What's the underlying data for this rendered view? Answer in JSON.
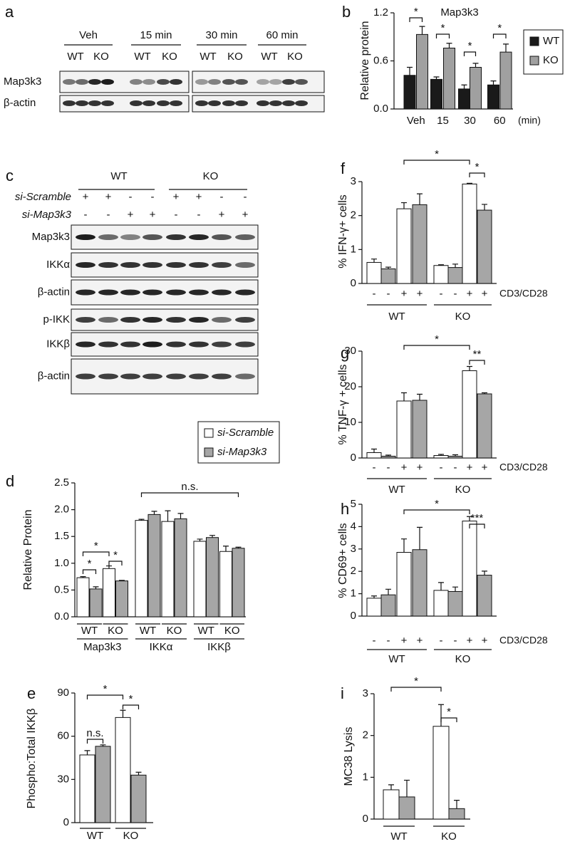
{
  "blots": [
    {
      "panel_label": "a",
      "groups": [
        "Veh",
        "15 min",
        "30 min",
        "60 min"
      ],
      "lanes": [
        "WT",
        "KO",
        "WT",
        "KO",
        "WT",
        "KO",
        "WT",
        "KO"
      ],
      "rows": [
        "Map3k3",
        "β-actin"
      ]
    },
    {
      "panel_label": "c",
      "groups": [
        "WT",
        "KO"
      ],
      "treatments": [
        {
          "name": "si-Scramble",
          "signs": [
            "+",
            "+",
            "-",
            "-",
            "+",
            "+",
            "-",
            "-"
          ]
        },
        {
          "name": "si-Map3k3",
          "signs": [
            "-",
            "-",
            "+",
            "+",
            "-",
            "-",
            "+",
            "+"
          ]
        }
      ],
      "rows": [
        "Map3k3",
        "IKKα",
        "β-actin",
        "p-IKK",
        "IKKβ",
        "β-actin"
      ]
    }
  ],
  "chart_data": [
    {
      "type": "bar",
      "panel_label": "b",
      "title": "Map3k3",
      "ylabel": "Relative protein",
      "xlabel": "(min)",
      "categories": [
        "Veh",
        "15",
        "30",
        "60"
      ],
      "series": [
        {
          "name": "WT",
          "color": "#1a1a1a",
          "values": [
            0.42,
            0.37,
            0.25,
            0.3
          ],
          "errors": [
            0.1,
            0.03,
            0.05,
            0.05
          ]
        },
        {
          "name": "KO",
          "color": "#a0a0a0",
          "values": [
            0.93,
            0.76,
            0.52,
            0.71
          ],
          "errors": [
            0.1,
            0.06,
            0.05,
            0.1
          ]
        }
      ],
      "ylim": [
        0,
        1.2
      ],
      "yticks": [
        {
          "value": 0,
          "label": "0.0"
        },
        0.6,
        1.2
      ],
      "legend": "right",
      "annotations": [
        "*",
        "*",
        "*",
        "*"
      ]
    },
    {
      "type": "bar",
      "panel_label": "d",
      "ylabel": "Relative Protein",
      "categories": [
        "WT",
        "KO",
        "WT",
        "KO",
        "WT",
        "KO"
      ],
      "groups": [
        "Map3k3",
        "IKKα",
        "IKKβ"
      ],
      "series": [
        {
          "name": "si-Scramble",
          "color": "#ffffff",
          "values": [
            0.73,
            0.9,
            1.8,
            1.78,
            1.41,
            1.22
          ],
          "errors": [
            0.02,
            0.05,
            0.02,
            0.2,
            0.04,
            0.1
          ]
        },
        {
          "name": "si-Map3k3",
          "color": "#a6a6a6",
          "values": [
            0.52,
            0.67,
            1.91,
            1.83,
            1.48,
            1.28
          ],
          "errors": [
            0.04,
            0.01,
            0.06,
            0.1,
            0.04,
            0.02
          ]
        }
      ],
      "ylim": [
        0,
        2.5
      ],
      "yticks": [
        {
          "value": 0,
          "label": "0.0"
        },
        0.5,
        {
          "value": 1,
          "label": "1.0"
        },
        1.5,
        {
          "value": 2,
          "label": "2.0"
        },
        2.5
      ],
      "legend": "upper center",
      "annotations": [
        "*",
        "*",
        "*",
        "n.s."
      ]
    },
    {
      "type": "bar",
      "panel_label": "e",
      "ylabel": "Phospho:Total IKKβ",
      "categories": [
        "WT",
        "KO"
      ],
      "series": [
        {
          "color": "#ffffff",
          "values": [
            47,
            73
          ],
          "errors": [
            3,
            5
          ]
        },
        {
          "color": "#a6a6a6",
          "values": [
            53,
            33
          ],
          "errors": [
            1,
            2
          ]
        }
      ],
      "ylim": [
        0,
        90
      ],
      "yticks": [
        0,
        30,
        60,
        90
      ],
      "annotations": [
        "*",
        "n.s.",
        "*"
      ]
    },
    {
      "type": "bar",
      "panel_label": "f",
      "ylabel": "% IFN-γ+ cells",
      "xlabel": "CD3/CD28",
      "categories": [
        "-",
        "-",
        "+",
        "+",
        "-",
        "-",
        "+",
        "+"
      ],
      "groups": [
        "WT",
        "KO"
      ],
      "values": [
        0.62,
        0.43,
        2.2,
        2.32,
        0.53,
        0.47,
        2.93,
        2.16
      ],
      "errors": [
        0.1,
        0.05,
        0.18,
        0.32,
        0.02,
        0.1,
        0.02,
        0.17
      ],
      "colors": [
        "#ffffff",
        "#a6a6a6",
        "#ffffff",
        "#a6a6a6",
        "#ffffff",
        "#a6a6a6",
        "#ffffff",
        "#a6a6a6"
      ],
      "ylim": [
        0,
        3
      ],
      "yticks": [
        0,
        1,
        2,
        3
      ],
      "annotations": [
        "*",
        "*"
      ]
    },
    {
      "type": "bar",
      "panel_label": "g",
      "ylabel": "% TNF-γ + cells",
      "xlabel": "CD3/CD28",
      "categories": [
        "-",
        "-",
        "+",
        "+",
        "-",
        "-",
        "+",
        "+"
      ],
      "groups": [
        "WT",
        "KO"
      ],
      "values": [
        1.5,
        0.5,
        16,
        16.2,
        0.7,
        0.5,
        24.5,
        18
      ],
      "errors": [
        1,
        0.3,
        2.3,
        1.7,
        0.3,
        0.4,
        1.2,
        0.3
      ],
      "colors": [
        "#ffffff",
        "#a6a6a6",
        "#ffffff",
        "#a6a6a6",
        "#ffffff",
        "#a6a6a6",
        "#ffffff",
        "#a6a6a6"
      ],
      "ylim": [
        0,
        30
      ],
      "yticks": [
        0,
        10,
        20,
        30
      ],
      "annotations": [
        "*",
        "**"
      ]
    },
    {
      "type": "bar",
      "panel_label": "h",
      "ylabel": "% CD69+ cells",
      "xlabel": "CD3/CD28",
      "categories": [
        "-",
        "-",
        "+",
        "+",
        "-",
        "-",
        "+",
        "+"
      ],
      "groups": [
        "WT",
        "KO"
      ],
      "values": [
        0.8,
        0.95,
        2.85,
        2.97,
        1.15,
        1.1,
        4.25,
        1.83
      ],
      "errors": [
        0.1,
        0.25,
        0.6,
        1.0,
        0.35,
        0.2,
        0.2,
        0.18
      ],
      "colors": [
        "#ffffff",
        "#a6a6a6",
        "#ffffff",
        "#a6a6a6",
        "#ffffff",
        "#a6a6a6",
        "#ffffff",
        "#a6a6a6"
      ],
      "ylim": [
        0,
        5
      ],
      "yticks": [
        0,
        1,
        2,
        3,
        4,
        5
      ],
      "annotations": [
        "*",
        "***"
      ]
    },
    {
      "type": "bar",
      "panel_label": "i",
      "ylabel": "MC38 Lysis",
      "groups": [
        "WT",
        "KO"
      ],
      "values": [
        0.7,
        0.53,
        2.22,
        0.25
      ],
      "errors": [
        0.12,
        0.4,
        0.52,
        0.2
      ],
      "colors": [
        "#ffffff",
        "#a6a6a6",
        "#ffffff",
        "#a6a6a6"
      ],
      "ylim": [
        0,
        3
      ],
      "yticks": [
        0,
        1,
        2,
        3
      ],
      "annotations": [
        "*",
        "*"
      ]
    }
  ]
}
